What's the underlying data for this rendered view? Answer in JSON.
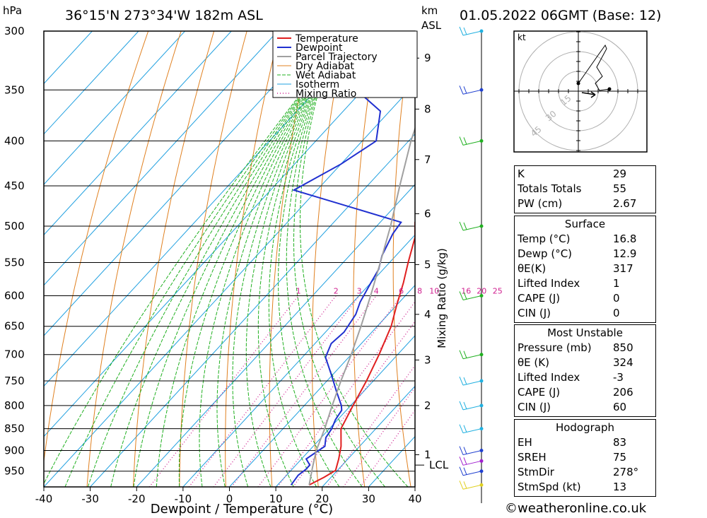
{
  "header": {
    "location": "36°15'N  273°34'W  182m  ASL",
    "datetime": "01.05.2022  06GMT  (Base: 12)",
    "unit_left": "hPa",
    "unit_right_1": "km",
    "unit_right_2": "ASL"
  },
  "chart_data": {
    "type": "line",
    "xlabel": "Dewpoint / Temperature (°C)",
    "ylabel": "hPa",
    "ylabel_right": "Mixing Ratio (g/kg)",
    "x_ticks": [
      -40,
      -30,
      -20,
      -10,
      0,
      10,
      20,
      30,
      40
    ],
    "pressure_levels": [
      300,
      350,
      400,
      450,
      500,
      550,
      600,
      650,
      700,
      750,
      800,
      850,
      900,
      950
    ],
    "km_ticks": [
      {
        "label": "1",
        "p": 910
      },
      {
        "label": "2",
        "p": 800
      },
      {
        "label": "3",
        "p": 710
      },
      {
        "label": "4",
        "p": 630
      },
      {
        "label": "5",
        "p": 553
      },
      {
        "label": "6",
        "p": 484
      },
      {
        "label": "7",
        "p": 420
      },
      {
        "label": "8",
        "p": 368
      },
      {
        "label": "9",
        "p": 322
      }
    ],
    "lcl": {
      "label": "LCL",
      "p": 935
    },
    "mixing_ratio_labels": [
      "1",
      "2",
      "3",
      "4",
      "6",
      "8",
      "10",
      "16",
      "20",
      "25"
    ],
    "legend": [
      "Temperature",
      "Dewpoint",
      "Parcel Trajectory",
      "Dry Adiabat",
      "Wet Adiabat",
      "Isotherm",
      "Mixing Ratio"
    ],
    "series": [
      {
        "name": "Temperature",
        "color": "#e02020",
        "points": [
          [
            16.8,
            985
          ],
          [
            18.5,
            965
          ],
          [
            19.6,
            948
          ],
          [
            18,
            920
          ],
          [
            16,
            890
          ],
          [
            12.5,
            850
          ],
          [
            10.5,
            800
          ],
          [
            8.5,
            750
          ],
          [
            6,
            700
          ],
          [
            3,
            650
          ],
          [
            0,
            615
          ],
          [
            -3,
            580
          ],
          [
            -6,
            550
          ],
          [
            -9.5,
            515
          ],
          [
            -12.5,
            495
          ],
          [
            -14,
            460
          ],
          [
            -16,
            445
          ],
          [
            -20,
            400
          ],
          [
            -25,
            365
          ],
          [
            -27.5,
            345
          ],
          [
            -30,
            315
          ],
          [
            -33,
            295
          ]
        ]
      },
      {
        "name": "Dewpoint",
        "color": "#2030d0",
        "points": [
          [
            12.9,
            985
          ],
          [
            12.5,
            960
          ],
          [
            13,
            945
          ],
          [
            13,
            935
          ],
          [
            11,
            920
          ],
          [
            12,
            900
          ],
          [
            12.5,
            890
          ],
          [
            11,
            870
          ],
          [
            10.5,
            850
          ],
          [
            9.5,
            830
          ],
          [
            9,
            810
          ],
          [
            8,
            800
          ],
          [
            4,
            770
          ],
          [
            0,
            740
          ],
          [
            -5,
            705
          ],
          [
            -6.5,
            680
          ],
          [
            -6,
            660
          ],
          [
            -7,
            630
          ],
          [
            -8.5,
            610
          ],
          [
            -10,
            580
          ],
          [
            -11,
            560
          ],
          [
            -13,
            540
          ],
          [
            -15,
            510
          ],
          [
            -15.5,
            495
          ],
          [
            -45,
            455
          ],
          [
            -40,
            425
          ],
          [
            -37,
            400
          ],
          [
            -42,
            370
          ],
          [
            -49,
            355
          ],
          [
            -49,
            345
          ],
          [
            -38,
            322
          ],
          [
            -51,
            310
          ],
          [
            -52,
            303
          ],
          [
            -51,
            297
          ]
        ]
      },
      {
        "name": "Parcel Trajectory",
        "color": "#a0a0a0",
        "points": [
          [
            16.8,
            985
          ],
          [
            14,
            940
          ],
          [
            11.5,
            900
          ],
          [
            9,
            850
          ],
          [
            6,
            800
          ],
          [
            3,
            750
          ],
          [
            0,
            700
          ],
          [
            -3.5,
            650
          ],
          [
            -7.5,
            600
          ],
          [
            -12,
            550
          ],
          [
            -17,
            500
          ],
          [
            -23,
            450
          ],
          [
            -29.5,
            400
          ],
          [
            -36,
            350
          ],
          [
            -43,
            310
          ]
        ]
      }
    ],
    "wind_barbs_color": "#20b020"
  },
  "hodograph": {
    "unit": "kt",
    "rings": [
      "15",
      "30",
      "45"
    ]
  },
  "indices": {
    "general": [
      {
        "label": "K",
        "value": "29"
      },
      {
        "label": "Totals Totals",
        "value": "55"
      },
      {
        "label": "PW (cm)",
        "value": "2.67"
      }
    ],
    "surface_title": "Surface",
    "surface": [
      {
        "label": "Temp (°C)",
        "value": "16.8"
      },
      {
        "label": "Dewp (°C)",
        "value": "12.9"
      },
      {
        "label": "θE(K)",
        "value": "317"
      },
      {
        "label": "Lifted Index",
        "value": "1"
      },
      {
        "label": "CAPE (J)",
        "value": "0"
      },
      {
        "label": "CIN (J)",
        "value": "0"
      }
    ],
    "unstable_title": "Most Unstable",
    "unstable": [
      {
        "label": "Pressure (mb)",
        "value": "850"
      },
      {
        "label": "θE (K)",
        "value": "324"
      },
      {
        "label": "Lifted Index",
        "value": "-3"
      },
      {
        "label": "CAPE (J)",
        "value": "206"
      },
      {
        "label": "CIN (J)",
        "value": "60"
      }
    ],
    "hodo_title": "Hodograph",
    "hodo": [
      {
        "label": "EH",
        "value": "83"
      },
      {
        "label": "SREH",
        "value": "75"
      },
      {
        "label": "StmDir",
        "value": "278°"
      },
      {
        "label": "StmSpd (kt)",
        "value": "13"
      }
    ]
  },
  "footer": "©weatheronline.co.uk"
}
